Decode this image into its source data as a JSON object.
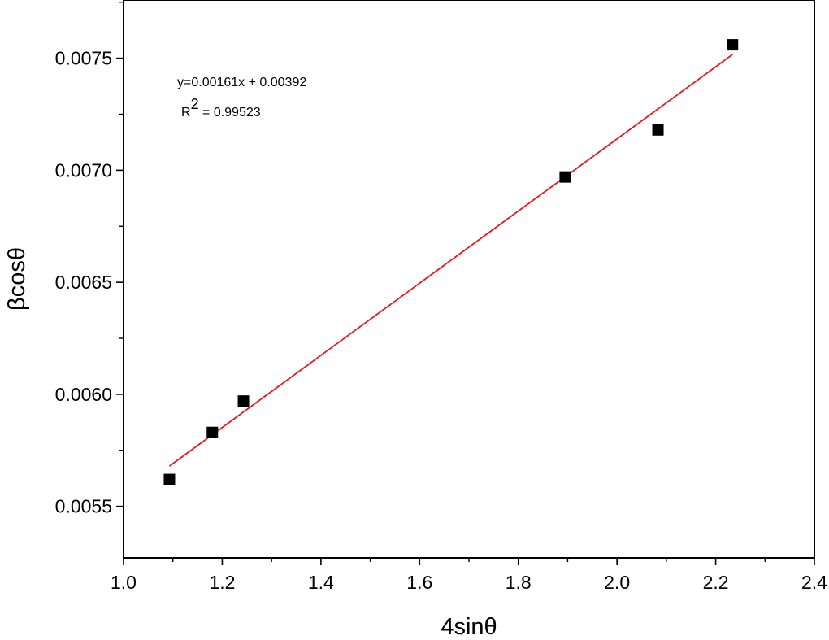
{
  "chart_data": {
    "type": "scatter",
    "title": "",
    "xlabel": "4sinθ",
    "ylabel": "βcosθ",
    "xlim": [
      1.0,
      2.4
    ],
    "ylim": [
      0.00527,
      0.00776
    ],
    "x_ticks": [
      1.0,
      1.2,
      1.4,
      1.6,
      1.8,
      2.0,
      2.2,
      2.4
    ],
    "x_tick_labels": [
      "1.0",
      "1.2",
      "1.4",
      "1.6",
      "1.8",
      "2.0",
      "2.2",
      "2.4"
    ],
    "y_ticks": [
      0.0055,
      0.006,
      0.0065,
      0.007,
      0.0075
    ],
    "y_tick_labels": [
      "0.0055",
      "0.0060",
      "0.0065",
      "0.0070",
      "0.0075"
    ],
    "grid": false,
    "series": [
      {
        "marker": "square",
        "color": "#000000",
        "x": [
          1.093,
          1.18,
          1.243,
          1.895,
          2.083,
          2.234
        ],
        "y": [
          0.00562,
          0.00583,
          0.00597,
          0.00697,
          0.00718,
          0.00756
        ]
      }
    ],
    "fit_line": {
      "color": "#e8191c",
      "slope": 0.00161,
      "intercept": 0.00392,
      "x_range": [
        1.093,
        2.234
      ]
    },
    "annotation": {
      "equation": "y=0.00161x + 0.00392",
      "r2_prefix": "R",
      "r2_superscript": "2",
      "r2_value": " = 0.99523"
    }
  }
}
